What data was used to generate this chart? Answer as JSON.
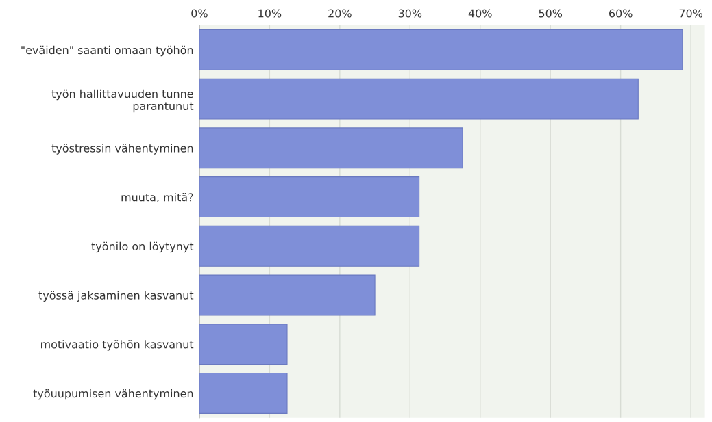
{
  "chart_data": {
    "type": "bar",
    "orientation": "horizontal",
    "categories": [
      "\"eväiden\" saanti omaan työhön",
      "työn hallittavuuden tunne\nparantunut",
      "työstressin vähentyminen",
      "muuta, mitä?",
      "työnilo on löytynyt",
      "työssä jaksaminen kasvanut",
      "motivaatio työhön kasvanut",
      "työuupumisen vähentyminen"
    ],
    "values": [
      68.8,
      62.5,
      37.5,
      31.3,
      31.3,
      25,
      12.5,
      12.5
    ],
    "color": "#7f8fd8",
    "xlim": [
      0,
      72
    ],
    "xticks": [
      {
        "value": 0,
        "label": "0%"
      },
      {
        "value": 10,
        "label": "10%"
      },
      {
        "value": 20,
        "label": "20%"
      },
      {
        "value": 30,
        "label": "30%"
      },
      {
        "value": 40,
        "label": "40%"
      },
      {
        "value": 50,
        "label": "50%"
      },
      {
        "value": 60,
        "label": "60%"
      },
      {
        "value": 70,
        "label": "70%"
      }
    ],
    "grid": "x",
    "legend": false
  }
}
